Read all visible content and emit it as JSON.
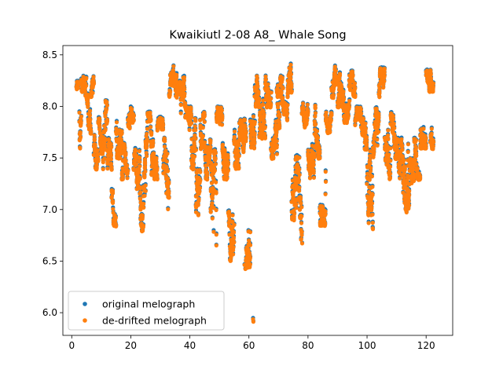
{
  "chart_data": {
    "type": "scatter",
    "title": "Kwaikiutl 2-08 A8_ Whale Song",
    "xlabel": "",
    "ylabel": "",
    "xlim": [
      -3,
      129
    ],
    "ylim": [
      5.78,
      8.59
    ],
    "xticks": [
      0,
      20,
      40,
      60,
      80,
      100,
      120
    ],
    "yticks": [
      6.0,
      6.5,
      7.0,
      7.5,
      8.0,
      8.5
    ],
    "ytick_labels": [
      "6.0",
      "6.5",
      "7.0",
      "7.5",
      "8.0",
      "8.5"
    ],
    "grid": false,
    "legend_position": "lower-left",
    "series": [
      {
        "name": "original melograph",
        "color": "#1f77b4",
        "segments": [
          [
            1.6,
            2.6,
            8.05,
            8.25
          ],
          [
            2.6,
            3.2,
            7.6,
            8.1
          ],
          [
            3.2,
            4.5,
            8.15,
            8.38
          ],
          [
            4.5,
            5.5,
            7.9,
            8.3
          ],
          [
            5.5,
            6.5,
            7.7,
            8.0
          ],
          [
            6.5,
            7.5,
            8.1,
            8.32
          ],
          [
            7.5,
            9.0,
            7.4,
            7.8
          ],
          [
            9.0,
            10.5,
            7.55,
            7.9
          ],
          [
            10.5,
            12.0,
            7.4,
            8.25
          ],
          [
            12.0,
            13.5,
            7.3,
            7.7
          ],
          [
            13.5,
            15.0,
            6.85,
            7.2
          ],
          [
            15.0,
            17.0,
            7.5,
            7.95
          ],
          [
            17.0,
            19.0,
            7.3,
            7.65
          ],
          [
            19.0,
            21.0,
            7.75,
            8.0
          ],
          [
            21.0,
            23.0,
            7.2,
            7.6
          ],
          [
            23.0,
            25.0,
            6.8,
            7.5
          ],
          [
            25.0,
            27.0,
            7.5,
            7.95
          ],
          [
            27.0,
            29.0,
            7.3,
            7.7
          ],
          [
            29.0,
            31.0,
            7.75,
            7.9
          ],
          [
            31.0,
            33.0,
            7.0,
            7.7
          ],
          [
            33.0,
            35.5,
            8.1,
            8.4
          ],
          [
            35.5,
            37.0,
            7.9,
            8.25
          ],
          [
            37.0,
            38.5,
            8.0,
            8.3
          ],
          [
            38.5,
            40.5,
            7.7,
            8.0
          ],
          [
            40.5,
            42.0,
            7.4,
            7.9
          ],
          [
            42.0,
            43.5,
            6.95,
            7.5
          ],
          [
            43.5,
            45.0,
            7.6,
            7.95
          ],
          [
            45.0,
            47.0,
            7.3,
            7.7
          ],
          [
            47.0,
            49.0,
            6.6,
            7.6
          ],
          [
            49.0,
            51.0,
            7.75,
            8.0
          ],
          [
            51.0,
            53.0,
            7.3,
            7.7
          ],
          [
            53.0,
            55.0,
            6.5,
            7.0
          ],
          [
            55.0,
            57.0,
            7.4,
            8.0
          ],
          [
            57.0,
            59.0,
            7.5,
            7.9
          ],
          [
            59.0,
            60.5,
            6.45,
            7.0
          ],
          [
            60.5,
            62.0,
            7.6,
            8.0
          ],
          [
            62.0,
            63.5,
            8.0,
            8.3
          ],
          [
            63.5,
            65.5,
            7.7,
            8.25
          ],
          [
            65.5,
            67.5,
            8.0,
            8.3
          ],
          [
            67.5,
            69.5,
            7.5,
            7.9
          ],
          [
            69.5,
            71.5,
            7.8,
            8.3
          ],
          [
            71.5,
            73.0,
            7.7,
            8.05
          ],
          [
            73.0,
            74.5,
            8.0,
            8.42
          ],
          [
            74.5,
            76.0,
            6.9,
            7.5
          ],
          [
            76.0,
            78.0,
            6.65,
            7.55
          ],
          [
            78.0,
            80.0,
            7.8,
            8.05
          ],
          [
            80.0,
            82.0,
            7.3,
            7.65
          ],
          [
            82.0,
            84.0,
            7.5,
            8.05
          ],
          [
            84.0,
            86.0,
            6.85,
            7.5
          ],
          [
            86.0,
            88.0,
            7.75,
            7.95
          ],
          [
            88.0,
            90.0,
            8.1,
            8.4
          ],
          [
            90.0,
            92.0,
            8.0,
            8.35
          ],
          [
            92.0,
            94.0,
            7.85,
            8.1
          ],
          [
            94.0,
            96.0,
            8.1,
            8.35
          ],
          [
            96.0,
            98.0,
            7.8,
            8.0
          ],
          [
            98.0,
            100.0,
            7.5,
            7.9
          ],
          [
            100.0,
            102.0,
            6.8,
            7.6
          ],
          [
            102.0,
            104.0,
            7.5,
            8.0
          ],
          [
            104.0,
            106.0,
            8.0,
            8.38
          ],
          [
            106.0,
            108.0,
            7.3,
            7.8
          ],
          [
            108.0,
            110.0,
            7.5,
            7.95
          ],
          [
            110.0,
            112.0,
            7.2,
            7.7
          ],
          [
            112.0,
            114.0,
            6.95,
            7.65
          ],
          [
            114.0,
            116.0,
            6.9,
            7.5
          ],
          [
            116.0,
            118.0,
            7.3,
            7.7
          ],
          [
            118.0,
            120.0,
            7.6,
            8.0
          ],
          [
            120.0,
            122.5,
            8.15,
            8.36
          ],
          [
            121.5,
            122.5,
            7.6,
            8.0
          ]
        ],
        "outliers": [
          [
            61.5,
            5.92
          ],
          [
            61.4,
            5.95
          ],
          [
            58.5,
            6.47
          ],
          [
            58.8,
            6.43
          ]
        ]
      },
      {
        "name": "de-drifted melograph",
        "color": "#ff7f0e"
      }
    ]
  }
}
